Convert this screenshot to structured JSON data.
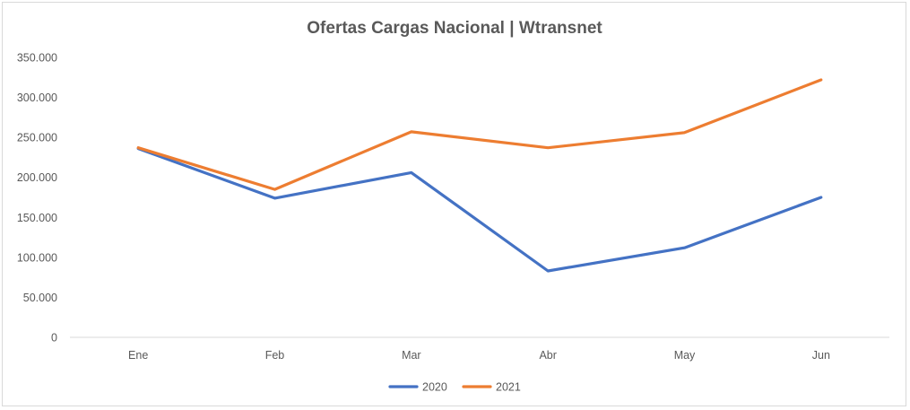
{
  "chart_data": {
    "type": "line",
    "title": "Ofertas Cargas Nacional | Wtransnet",
    "categories": [
      "Ene",
      "Feb",
      "Mar",
      "Abr",
      "May",
      "Jun"
    ],
    "series": [
      {
        "name": "2020",
        "color": "#4472c4",
        "values": [
          236000,
          174000,
          206000,
          83000,
          112000,
          175000
        ]
      },
      {
        "name": "2021",
        "color": "#ed7d31",
        "values": [
          237000,
          185000,
          257000,
          237000,
          256000,
          322000
        ]
      }
    ],
    "ylim": [
      0,
      350000
    ],
    "yticks": [
      0,
      50000,
      100000,
      150000,
      200000,
      250000,
      300000,
      350000
    ],
    "ytick_labels": [
      "0",
      "50.000",
      "100.000",
      "150.000",
      "200.000",
      "250.000",
      "300.000",
      "350.000"
    ],
    "grid": false,
    "legend_position": "bottom"
  }
}
